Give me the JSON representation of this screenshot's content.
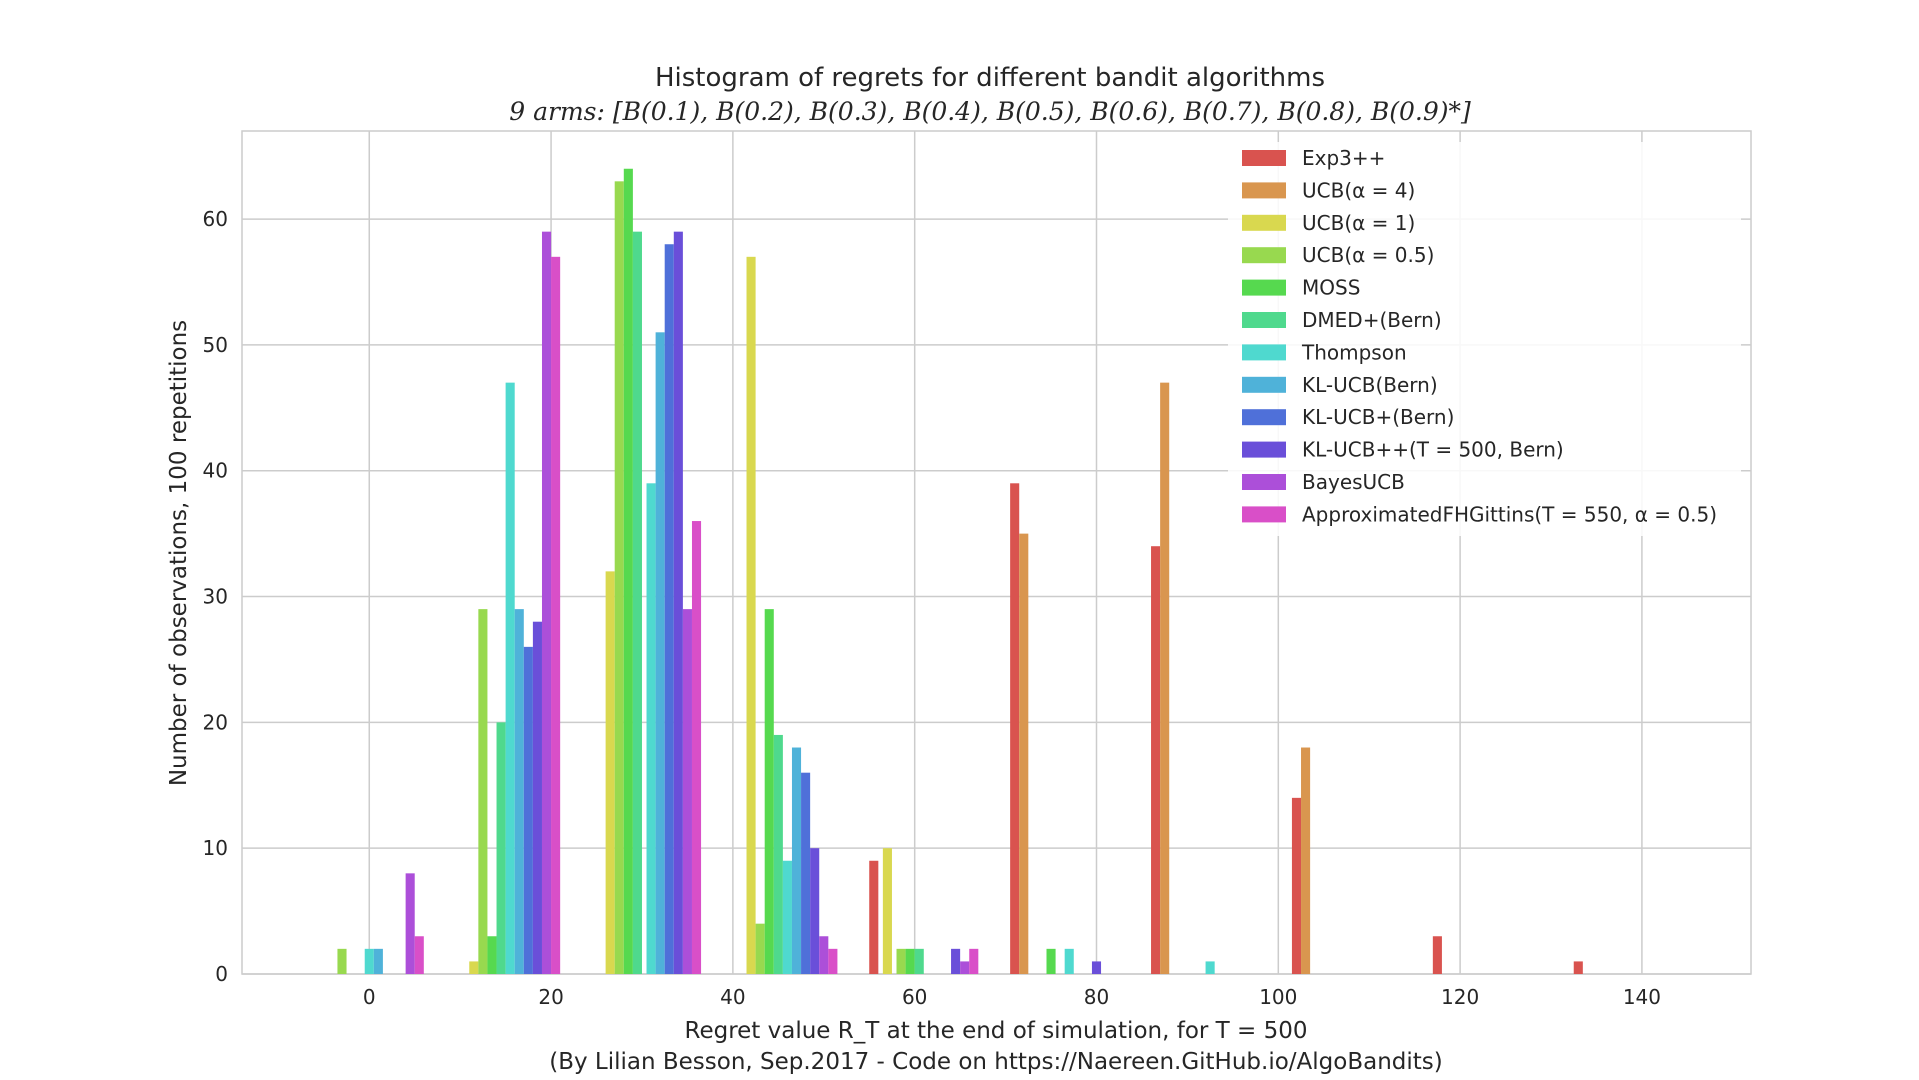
{
  "chart_data": {
    "type": "bar",
    "title": "Histogram of regrets for different bandit algorithms",
    "subtitle": "9 arms: [B(0.1), B(0.2), B(0.3), B(0.4), B(0.5), B(0.6), B(0.7), B(0.8), B(0.9)*]",
    "xlabel": "Regret value R_T at the end of simulation, for T = 500",
    "ylabel": "Number of observations, 100 repetitions",
    "footer": "(By Lilian Besson, Sep.2017 - Code on https://Naereen.GitHub.io/AlgoBandits)",
    "xlim": [
      -14,
      152
    ],
    "ylim": [
      0,
      67
    ],
    "x_ticks": [
      0,
      20,
      40,
      60,
      80,
      100,
      120,
      140
    ],
    "y_ticks": [
      0,
      10,
      20,
      30,
      40,
      50,
      60
    ],
    "grid": true,
    "legend_position": "top-right",
    "series": [
      {
        "name": "Exp3++",
        "color": "#d9534f",
        "points": [
          [
            55.5,
            9
          ],
          [
            71.0,
            39
          ],
          [
            86.5,
            34
          ],
          [
            102.0,
            14
          ],
          [
            117.5,
            3
          ],
          [
            133.0,
            1
          ]
        ]
      },
      {
        "name": "UCB(α = 4)",
        "color": "#d9964f",
        "points": [
          [
            72.0,
            35
          ],
          [
            87.5,
            47
          ],
          [
            103.0,
            18
          ]
        ]
      },
      {
        "name": "UCB(α = 1)",
        "color": "#d9d84f",
        "points": [
          [
            11.5,
            1
          ],
          [
            26.5,
            32
          ],
          [
            42.0,
            57
          ],
          [
            57.0,
            10
          ]
        ]
      },
      {
        "name": "UCB(α = 0.5)",
        "color": "#98d94f",
        "points": [
          [
            -3.0,
            2
          ],
          [
            12.5,
            29
          ],
          [
            27.5,
            63
          ],
          [
            43.0,
            4
          ],
          [
            58.5,
            2
          ]
        ]
      },
      {
        "name": "MOSS",
        "color": "#56d94f",
        "points": [
          [
            13.5,
            3
          ],
          [
            28.5,
            64
          ],
          [
            44.0,
            29
          ],
          [
            59.5,
            2
          ],
          [
            75.0,
            2
          ]
        ]
      },
      {
        "name": "DMED+(Bern)",
        "color": "#4fd98d",
        "points": [
          [
            14.5,
            20
          ],
          [
            29.5,
            59
          ],
          [
            45.0,
            19
          ],
          [
            60.5,
            2
          ]
        ]
      },
      {
        "name": "Thompson",
        "color": "#4fd9cf",
        "points": [
          [
            0.0,
            2
          ],
          [
            15.5,
            47
          ],
          [
            31.0,
            39
          ],
          [
            46.0,
            9
          ],
          [
            77.0,
            2
          ],
          [
            92.5,
            1
          ]
        ]
      },
      {
        "name": "KL-UCB(Bern)",
        "color": "#4fb2d9",
        "points": [
          [
            1.0,
            2
          ],
          [
            16.5,
            29
          ],
          [
            32.0,
            51
          ],
          [
            47.0,
            18
          ]
        ]
      },
      {
        "name": "KL-UCB+(Bern)",
        "color": "#4f70d9",
        "points": [
          [
            17.5,
            26
          ],
          [
            33.0,
            58
          ],
          [
            48.0,
            16
          ]
        ]
      },
      {
        "name": "KL-UCB++(T = 500, Bern)",
        "color": "#6a4fd9",
        "points": [
          [
            18.5,
            28
          ],
          [
            34.0,
            59
          ],
          [
            49.0,
            10
          ],
          [
            64.5,
            2
          ],
          [
            80.0,
            1
          ]
        ]
      },
      {
        "name": "BayesUCB",
        "color": "#ac4fd9",
        "points": [
          [
            4.5,
            8
          ],
          [
            19.5,
            59
          ],
          [
            35.0,
            29
          ],
          [
            50.0,
            3
          ],
          [
            65.5,
            1
          ]
        ]
      },
      {
        "name": "ApproximatedFHGittins(T = 550, α = 0.5)",
        "color": "#d94fc8",
        "points": [
          [
            5.5,
            3
          ],
          [
            20.5,
            57
          ],
          [
            36.0,
            36
          ],
          [
            51.0,
            2
          ],
          [
            66.5,
            2
          ]
        ]
      }
    ]
  }
}
